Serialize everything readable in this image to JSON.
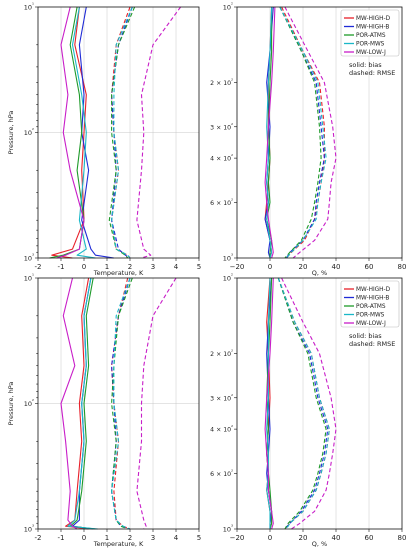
{
  "colors": {
    "MW-HIGH-D": "#e8202a",
    "MW-HIGH-B": "#1f2bd6",
    "POR-ATMS": "#1e9a2a",
    "POR-MWS": "#1ab8c8",
    "MW-LOW-J": "#c81ec8"
  },
  "legend": {
    "entries": [
      "MW-HIGH-D",
      "MW-HIGH-B",
      "POR-ATMS",
      "POR-MWS",
      "MW-LOW-J"
    ],
    "note_line1": "solid: bias",
    "note_line2": "dashed: RMSE"
  },
  "chart_data": [
    {
      "type": "line",
      "panel": "top-left",
      "xlabel": "Temperature, K",
      "ylabel": "Pressure, hPa",
      "xlim": [
        -2,
        5
      ],
      "x_ticks": [
        "-2",
        "-1",
        "0",
        "1",
        "2",
        "3",
        "4",
        "5"
      ],
      "ylim": [
        1000,
        10
      ],
      "yscale": "log",
      "y_ticks": [
        "10¹",
        "10²",
        "10³"
      ],
      "grid": true,
      "pressure_levels": [
        10,
        20,
        50,
        100,
        200,
        500,
        850,
        950,
        1000
      ],
      "series": [
        {
          "name": "MW-HIGH-D",
          "style": "solid",
          "values": [
            -0.2,
            -0.4,
            0.1,
            0.0,
            -0.1,
            0.0,
            -0.5,
            -1.4,
            -0.5
          ]
        },
        {
          "name": "MW-HIGH-B",
          "style": "solid",
          "values": [
            0.1,
            -0.2,
            0.0,
            -0.1,
            0.2,
            -0.1,
            0.3,
            0.5,
            1.3
          ]
        },
        {
          "name": "POR-ATMS",
          "style": "solid",
          "values": [
            -0.3,
            -0.6,
            -0.2,
            -0.1,
            -0.3,
            0.0,
            -0.2,
            -0.9,
            -1.5
          ]
        },
        {
          "name": "POR-MWS",
          "style": "solid",
          "values": [
            -0.2,
            -0.5,
            -0.1,
            0.1,
            0.0,
            -0.2,
            0.1,
            -0.3,
            0.5
          ]
        },
        {
          "name": "MW-LOW-J",
          "style": "solid",
          "values": [
            -0.6,
            -1.0,
            -0.7,
            -0.9,
            -0.6,
            0.0,
            -0.2,
            -0.8,
            -1.2
          ]
        },
        {
          "name": "MW-HIGH-D",
          "style": "dashed",
          "values": [
            2.0,
            1.4,
            1.2,
            1.3,
            1.5,
            1.2,
            1.4,
            1.9,
            2.0
          ]
        },
        {
          "name": "MW-HIGH-B",
          "style": "dashed",
          "values": [
            2.1,
            1.5,
            1.2,
            1.3,
            1.4,
            1.2,
            1.5,
            1.8,
            2.0
          ]
        },
        {
          "name": "POR-ATMS",
          "style": "dashed",
          "values": [
            2.2,
            1.5,
            1.2,
            1.2,
            1.4,
            1.1,
            1.4,
            1.8,
            1.9
          ]
        },
        {
          "name": "POR-MWS",
          "style": "dashed",
          "values": [
            2.1,
            1.4,
            1.3,
            1.3,
            1.5,
            1.2,
            1.4,
            1.9,
            2.0
          ]
        },
        {
          "name": "MW-LOW-J",
          "style": "dashed",
          "values": [
            4.2,
            3.0,
            2.5,
            2.6,
            2.5,
            2.3,
            2.6,
            2.9,
            2.5
          ]
        }
      ]
    },
    {
      "type": "line",
      "panel": "top-right",
      "xlabel": "Q, %",
      "ylabel": "",
      "xlim": [
        -20,
        80
      ],
      "x_ticks": [
        "−20",
        "0",
        "20",
        "40",
        "60",
        "80"
      ],
      "ylim": [
        1000,
        100
      ],
      "yscale": "log",
      "y_ticks": [
        "10²",
        "2 × 10²",
        "3 × 10²",
        "4 × 10²",
        "6 × 10²",
        "10³"
      ],
      "grid": true,
      "pressure_levels": [
        100,
        150,
        200,
        300,
        400,
        500,
        600,
        700,
        850,
        950,
        1000
      ],
      "series": [
        {
          "name": "MW-HIGH-D",
          "style": "solid",
          "values": [
            1,
            0,
            -1,
            -1,
            0,
            -1,
            -2,
            -3,
            0,
            1,
            0
          ]
        },
        {
          "name": "MW-HIGH-B",
          "style": "solid",
          "values": [
            2,
            0,
            -2,
            0,
            -1,
            -2,
            -1,
            -3,
            0,
            -1,
            0
          ]
        },
        {
          "name": "POR-ATMS",
          "style": "solid",
          "values": [
            1,
            1,
            0,
            -1,
            0,
            -1,
            0,
            -2,
            1,
            0,
            0
          ]
        },
        {
          "name": "POR-MWS",
          "style": "solid",
          "values": [
            1,
            0,
            -1,
            -2,
            -1,
            -2,
            -1,
            -2,
            0,
            1,
            0
          ]
        },
        {
          "name": "MW-LOW-J",
          "style": "solid",
          "values": [
            3,
            2,
            1,
            -1,
            -2,
            -3,
            -2,
            -1,
            1,
            2,
            1
          ]
        },
        {
          "name": "MW-HIGH-D",
          "style": "dashed",
          "values": [
            7,
            20,
            30,
            33,
            33,
            31,
            29,
            27,
            21,
            13,
            10
          ]
        },
        {
          "name": "MW-HIGH-B",
          "style": "dashed",
          "values": [
            6,
            19,
            28,
            31,
            33,
            30,
            28,
            27,
            20,
            12,
            10
          ]
        },
        {
          "name": "POR-ATMS",
          "style": "dashed",
          "values": [
            6,
            19,
            27,
            30,
            31,
            29,
            27,
            25,
            19,
            12,
            9
          ]
        },
        {
          "name": "POR-MWS",
          "style": "dashed",
          "values": [
            6,
            20,
            29,
            32,
            34,
            31,
            29,
            28,
            20,
            13,
            10
          ]
        },
        {
          "name": "MW-LOW-J",
          "style": "dashed",
          "values": [
            9,
            23,
            33,
            38,
            40,
            37,
            36,
            35,
            27,
            18,
            14
          ]
        }
      ]
    },
    {
      "type": "line",
      "panel": "bottom-left",
      "xlabel": "Temperature, K",
      "ylabel": "Pressure, hPa",
      "xlim": [
        -2,
        5
      ],
      "x_ticks": [
        "-2",
        "-1",
        "0",
        "1",
        "2",
        "3",
        "4",
        "5"
      ],
      "ylim": [
        1000,
        10
      ],
      "yscale": "log",
      "y_ticks": [
        "10¹",
        "10²",
        "10³"
      ],
      "grid": true,
      "pressure_levels": [
        10,
        20,
        50,
        100,
        200,
        500,
        850,
        950,
        1000
      ],
      "series": [
        {
          "name": "MW-HIGH-D",
          "style": "solid",
          "values": [
            0.2,
            -0.1,
            0.0,
            -0.2,
            -0.1,
            -0.3,
            -0.4,
            -0.8,
            0.2
          ]
        },
        {
          "name": "MW-HIGH-B",
          "style": "solid",
          "values": [
            0.3,
            0.0,
            0.1,
            -0.1,
            0.0,
            -0.2,
            -0.2,
            -0.5,
            0.4
          ]
        },
        {
          "name": "POR-ATMS",
          "style": "solid",
          "values": [
            0.4,
            0.1,
            0.2,
            0.0,
            0.1,
            -0.1,
            -0.3,
            -0.6,
            0.5
          ]
        },
        {
          "name": "POR-MWS",
          "style": "solid",
          "values": [
            0.3,
            0.0,
            0.1,
            -0.1,
            0.0,
            -0.2,
            -0.4,
            -0.7,
            0.6
          ]
        },
        {
          "name": "MW-LOW-J",
          "style": "solid",
          "values": [
            -0.5,
            -0.9,
            -0.4,
            -1.0,
            -0.8,
            -0.6,
            -0.7,
            -0.5,
            -0.3
          ]
        },
        {
          "name": "MW-HIGH-D",
          "style": "dashed",
          "values": [
            1.9,
            1.5,
            1.2,
            1.3,
            1.5,
            1.3,
            1.4,
            1.7,
            2.0
          ]
        },
        {
          "name": "MW-HIGH-B",
          "style": "dashed",
          "values": [
            2.0,
            1.5,
            1.2,
            1.3,
            1.4,
            1.2,
            1.4,
            1.6,
            2.0
          ]
        },
        {
          "name": "POR-ATMS",
          "style": "dashed",
          "values": [
            2.1,
            1.5,
            1.3,
            1.2,
            1.4,
            1.2,
            1.4,
            1.6,
            1.9
          ]
        },
        {
          "name": "POR-MWS",
          "style": "dashed",
          "values": [
            2.0,
            1.4,
            1.3,
            1.3,
            1.5,
            1.2,
            1.4,
            1.7,
            2.0
          ]
        },
        {
          "name": "MW-LOW-J",
          "style": "dashed",
          "values": [
            4.0,
            3.0,
            2.6,
            2.5,
            2.5,
            2.3,
            2.6,
            2.7,
            2.6
          ]
        }
      ]
    },
    {
      "type": "line",
      "panel": "bottom-right",
      "xlabel": "Q, %",
      "ylabel": "",
      "xlim": [
        -20,
        80
      ],
      "x_ticks": [
        "−20",
        "0",
        "20",
        "40",
        "60",
        "80"
      ],
      "ylim": [
        1000,
        100
      ],
      "yscale": "log",
      "y_ticks": [
        "10²",
        "2 × 10²",
        "3 × 10²",
        "4 × 10²",
        "6 × 10²",
        "10³"
      ],
      "grid": true,
      "pressure_levels": [
        100,
        150,
        200,
        300,
        400,
        500,
        600,
        700,
        850,
        950,
        1000
      ],
      "series": [
        {
          "name": "MW-HIGH-D",
          "style": "solid",
          "values": [
            0,
            -2,
            -1,
            0,
            -1,
            -2,
            -1,
            -2,
            0,
            1,
            0
          ]
        },
        {
          "name": "MW-HIGH-B",
          "style": "solid",
          "values": [
            1,
            -1,
            -2,
            -1,
            0,
            -1,
            -2,
            -1,
            1,
            0,
            0
          ]
        },
        {
          "name": "POR-ATMS",
          "style": "solid",
          "values": [
            1,
            0,
            -1,
            -2,
            -1,
            -2,
            -1,
            0,
            1,
            1,
            0
          ]
        },
        {
          "name": "POR-MWS",
          "style": "solid",
          "values": [
            0,
            -1,
            -1,
            -1,
            -2,
            -1,
            -1,
            -2,
            0,
            0,
            0
          ]
        },
        {
          "name": "MW-LOW-J",
          "style": "solid",
          "values": [
            2,
            1,
            0,
            -2,
            -3,
            -2,
            -1,
            -1,
            1,
            2,
            1
          ]
        },
        {
          "name": "MW-HIGH-D",
          "style": "dashed",
          "values": [
            5,
            15,
            25,
            30,
            36,
            34,
            31,
            28,
            20,
            12,
            9
          ]
        },
        {
          "name": "MW-HIGH-B",
          "style": "dashed",
          "values": [
            5,
            14,
            24,
            29,
            35,
            33,
            30,
            27,
            19,
            12,
            9
          ]
        },
        {
          "name": "POR-ATMS",
          "style": "dashed",
          "values": [
            5,
            14,
            23,
            28,
            34,
            32,
            29,
            26,
            18,
            11,
            9
          ]
        },
        {
          "name": "POR-MWS",
          "style": "dashed",
          "values": [
            5,
            15,
            25,
            30,
            36,
            34,
            31,
            28,
            20,
            12,
            10
          ]
        },
        {
          "name": "MW-LOW-J",
          "style": "dashed",
          "values": [
            7,
            20,
            30,
            37,
            40,
            38,
            36,
            34,
            27,
            18,
            13
          ]
        }
      ]
    }
  ]
}
